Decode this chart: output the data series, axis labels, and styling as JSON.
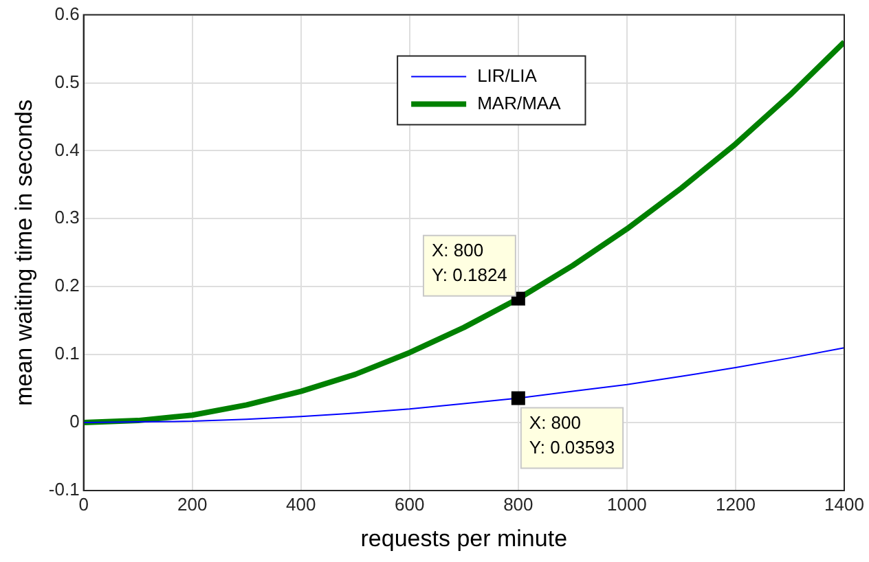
{
  "chart_data": {
    "type": "line",
    "xlabel": "requests per minute",
    "ylabel": "mean waiting time in seconds",
    "x": [
      0,
      100,
      200,
      300,
      400,
      500,
      600,
      700,
      800,
      900,
      1000,
      1100,
      1200,
      1300,
      1400
    ],
    "series": [
      {
        "name": "LIR/LIA",
        "color": "#0000ff",
        "values": [
          0,
          0.001,
          0.002,
          0.005,
          0.009,
          0.014,
          0.02,
          0.028,
          0.03593,
          0.046,
          0.056,
          0.068,
          0.081,
          0.095,
          0.11
        ]
      },
      {
        "name": "MAR/MAA",
        "color": "#008000",
        "values": [
          0,
          0.003,
          0.011,
          0.026,
          0.046,
          0.071,
          0.103,
          0.14,
          0.1824,
          0.231,
          0.285,
          0.345,
          0.41,
          0.482,
          0.56
        ]
      }
    ],
    "xlim": [
      0,
      1400
    ],
    "xticks": [
      0,
      200,
      400,
      600,
      800,
      1000,
      1200,
      1400
    ],
    "ylim": [
      -0.1,
      0.6
    ],
    "yticks": [
      -0.1,
      0,
      0.1,
      0.2,
      0.3,
      0.4,
      0.5,
      0.6
    ],
    "annotations": [
      {
        "text": "X: 800\nY: 0.1824",
        "x": 800,
        "y": 0.1824
      },
      {
        "text": "X: 800\nY: 0.03593",
        "x": 800,
        "y": 0.03593
      }
    ],
    "grid": true,
    "legend": "top",
    "marker": "none",
    "line_style": "solid"
  }
}
